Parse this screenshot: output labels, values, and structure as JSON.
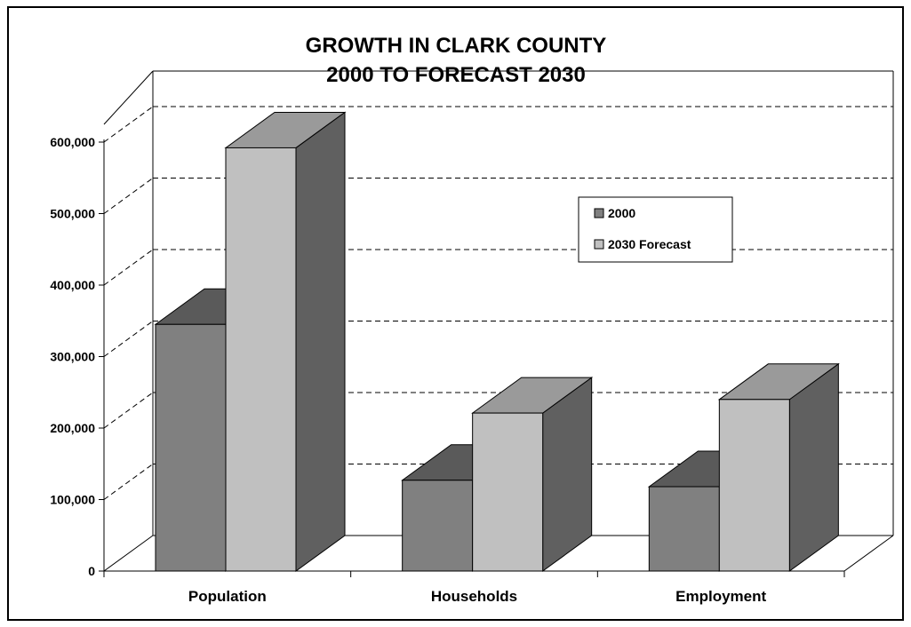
{
  "chart_data": {
    "type": "bar",
    "title": [
      "GROWTH IN CLARK COUNTY",
      "2000 TO FORECAST 2030"
    ],
    "categories": [
      "Population",
      "Households",
      "Employment"
    ],
    "series": [
      {
        "name": "2000",
        "values": [
          345000,
          127000,
          118000
        ],
        "color": "#808080",
        "top_color": "#5a5a5a",
        "side_color": "#5f5f5f"
      },
      {
        "name": "2030 Forecast",
        "values": [
          592000,
          221000,
          240000
        ],
        "color": "#c0c0c0",
        "top_color": "#9a9a9a",
        "side_color": "#606060"
      }
    ],
    "ylim": [
      0,
      600000
    ],
    "y_ticks": [
      "0",
      "100,000",
      "200,000",
      "300,000",
      "400,000",
      "500,000",
      "600,000"
    ],
    "grid": true,
    "legend_position": "right"
  }
}
